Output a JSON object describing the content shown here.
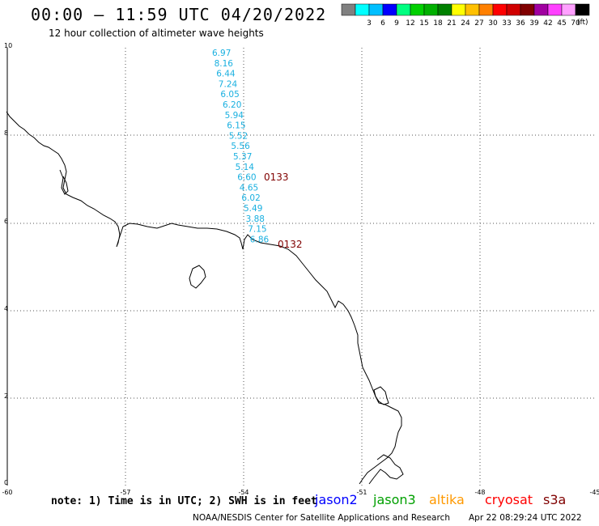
{
  "header": {
    "title": "00:00 – 11:59 UTC 04/20/2022",
    "subtitle": "12 hour collection of altimeter wave heights"
  },
  "legend": {
    "units": "(ft)",
    "bins": [
      {
        "label": "",
        "color": "#808080"
      },
      {
        "label": "3",
        "color": "#00ffff"
      },
      {
        "label": "6",
        "color": "#00bfff"
      },
      {
        "label": "9",
        "color": "#0000ff"
      },
      {
        "label": "12",
        "color": "#00ff80"
      },
      {
        "label": "15",
        "color": "#00d000"
      },
      {
        "label": "18",
        "color": "#00b000"
      },
      {
        "label": "21",
        "color": "#008000"
      },
      {
        "label": "24",
        "color": "#ffff00"
      },
      {
        "label": "27",
        "color": "#ffc000"
      },
      {
        "label": "30",
        "color": "#ff8000"
      },
      {
        "label": "33",
        "color": "#ff0000"
      },
      {
        "label": "36",
        "color": "#d00000"
      },
      {
        "label": "39",
        "color": "#800000"
      },
      {
        "label": "42",
        "color": "#a000a0"
      },
      {
        "label": "45",
        "color": "#ff40ff"
      },
      {
        "label": "70",
        "color": "#ffa0ff"
      },
      {
        "label": "",
        "color": "#000000"
      }
    ]
  },
  "axes": {
    "lon_ticks": [
      "-60",
      "-57",
      "-54",
      "-51",
      "-48",
      "-45"
    ],
    "lat_ticks": [
      "0",
      "2",
      "4",
      "6",
      "8",
      "10"
    ]
  },
  "track": {
    "color": "#1ab0e0",
    "values": [
      "6.97",
      "8.16",
      "6.44",
      "7.24",
      "6.05",
      "6.20",
      "5.94",
      "6.15",
      "5.52",
      "5.56",
      "5.37",
      "5.14",
      "6.60",
      "4.65",
      "6.02",
      "5.49",
      "3.88",
      "7.15",
      "6.86"
    ]
  },
  "time_labels": {
    "color": "#800000",
    "items": [
      "0133",
      "0132"
    ]
  },
  "notes": {
    "text": "note: 1) Time is in UTC; 2) SWH is in feet"
  },
  "satellites": [
    {
      "name": "jason2",
      "color": "#0000ff"
    },
    {
      "name": "jason3",
      "color": "#00a000"
    },
    {
      "name": "altika",
      "color": "#ff9900"
    },
    {
      "name": "cryosat",
      "color": "#ff0000"
    },
    {
      "name": "s3a",
      "color": "#800000"
    }
  ],
  "footer": {
    "credit": "NOAA/NESDIS Center for Satellite Applications and Research",
    "timestamp": "Apr 22 08:29:24 UTC 2022"
  }
}
